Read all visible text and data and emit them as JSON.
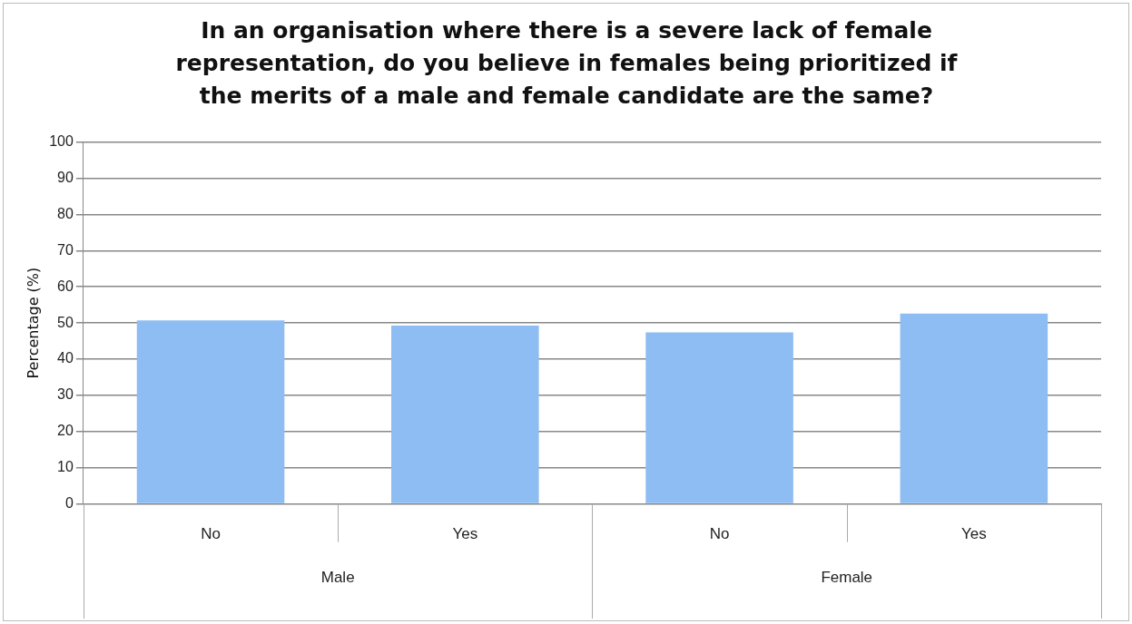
{
  "chart_data": {
    "type": "bar",
    "title": "In an organisation where there is a severe lack of female representation, do you believe in females being prioritized if the merits of a male and female candidate are the same?",
    "ylabel": "Percentage (%)",
    "categories": [
      "No",
      "Yes",
      "No",
      "Yes"
    ],
    "values": [
      50.7,
      49.3,
      47.4,
      52.6
    ],
    "color": "#8dbdf2",
    "annotations": [
      "Male",
      "Female"
    ],
    "ylim": [
      0,
      100
    ],
    "yticks": [
      0,
      10,
      20,
      30,
      40,
      50,
      60,
      70,
      80,
      90,
      100
    ],
    "grid": "y",
    "legend": false
  }
}
